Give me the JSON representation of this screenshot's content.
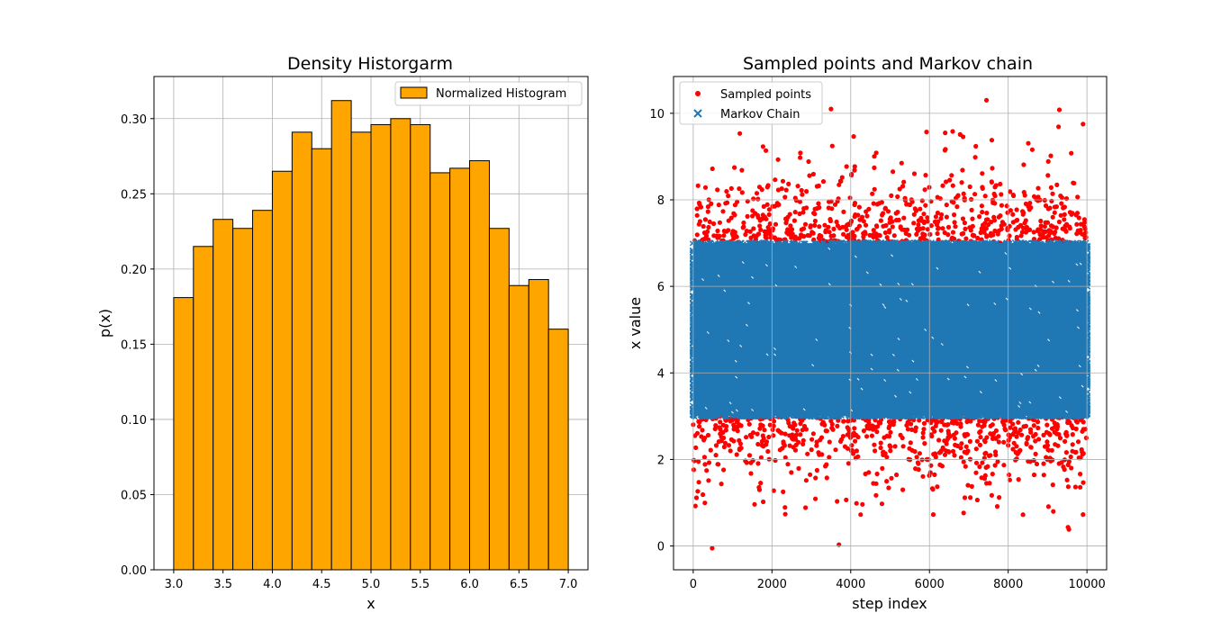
{
  "chart_data": [
    {
      "type": "bar",
      "title": "Density Historgarm",
      "xlabel": "x",
      "ylabel": "p(x)",
      "xlim": [
        2.8,
        7.2
      ],
      "ylim": [
        0.0,
        0.328
      ],
      "grid": true,
      "legend": {
        "placement": "top-right",
        "entries": [
          "Normalized Histogram"
        ]
      },
      "x_ticks": [
        "3.0",
        "3.5",
        "4.0",
        "4.5",
        "5.0",
        "5.5",
        "6.0",
        "6.5",
        "7.0"
      ],
      "y_ticks": [
        "0.00",
        "0.05",
        "0.10",
        "0.15",
        "0.20",
        "0.25",
        "0.30"
      ],
      "bin_edges": [
        3.0,
        3.2,
        3.4,
        3.6,
        3.8,
        4.0,
        4.2,
        4.4,
        4.6,
        4.8,
        5.0,
        5.2,
        5.4,
        5.6,
        5.8,
        6.0,
        6.2,
        6.4,
        6.6,
        6.8,
        7.0
      ],
      "values": [
        0.181,
        0.215,
        0.233,
        0.227,
        0.239,
        0.265,
        0.291,
        0.28,
        0.312,
        0.291,
        0.296,
        0.3,
        0.296,
        0.264,
        0.267,
        0.272,
        0.227,
        0.189,
        0.193,
        0.16
      ],
      "bar_color": "#ffa500",
      "edge_color": "#000000"
    },
    {
      "type": "scatter",
      "title": "Sampled points and Markov chain",
      "xlabel": "step index",
      "ylabel": "x value",
      "xlim": [
        -500,
        10500
      ],
      "ylim": [
        -0.55,
        10.85
      ],
      "grid": true,
      "x_ticks": [
        "0",
        "2000",
        "4000",
        "6000",
        "8000",
        "10000"
      ],
      "y_ticks": [
        "0",
        "2",
        "4",
        "6",
        "8",
        "10"
      ],
      "legend": {
        "placement": "top-left",
        "entries": [
          "Sampled points",
          "Markov Chain"
        ]
      },
      "series": [
        {
          "name": "Sampled points",
          "marker": "o",
          "color": "#ff0000",
          "n": 10000,
          "x_range": [
            0,
            10000
          ],
          "distribution": "normal",
          "mean": 5.0,
          "std": 1.4
        },
        {
          "name": "Markov Chain",
          "marker": "x",
          "color": "#1f77b4",
          "n": 10000,
          "x_range": [
            0,
            10000
          ],
          "y_range": [
            3.0,
            7.0
          ]
        }
      ],
      "outliers": [
        {
          "x": 480,
          "y": -0.05
        },
        {
          "x": 3700,
          "y": 0.03
        },
        {
          "x": 7450,
          "y": 10.3
        },
        {
          "x": 3500,
          "y": 10.1
        },
        {
          "x": 9300,
          "y": 10.08
        },
        {
          "x": 9900,
          "y": 9.75
        }
      ]
    }
  ]
}
